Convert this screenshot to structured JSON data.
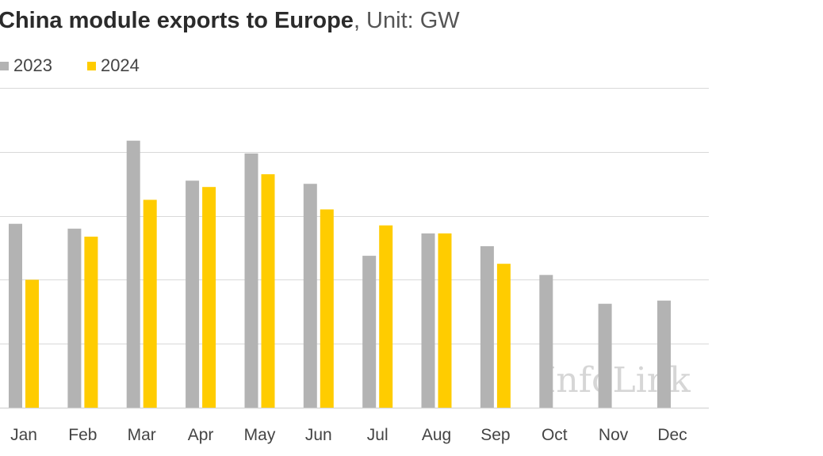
{
  "title_bold": "China module exports to Europe",
  "title_rest": ", Unit: GW",
  "colors": {
    "s2023": "#b3b3b3",
    "s2024": "#ffcc00",
    "grid": "#d9d9d9",
    "axis_text": "#444444",
    "watermark": "#d6d6d6"
  },
  "watermark": "InfoLink",
  "chart_data": {
    "type": "bar",
    "categories": [
      "Jan",
      "Feb",
      "Mar",
      "Apr",
      "May",
      "Jun",
      "Jul",
      "Aug",
      "Sep",
      "Oct",
      "Nov",
      "Dec"
    ],
    "series": [
      {
        "name": "2023",
        "values": [
          5.75,
          5.6,
          8.35,
          7.1,
          7.95,
          7.0,
          4.75,
          5.45,
          5.05,
          4.15,
          3.25,
          3.35
        ]
      },
      {
        "name": "2024",
        "values": [
          4.0,
          5.35,
          6.5,
          6.9,
          7.3,
          6.2,
          5.7,
          5.45,
          4.5,
          null,
          null,
          null
        ]
      }
    ],
    "ylim": [
      0,
      10
    ],
    "y_tick_step": 2,
    "grid": true,
    "legend_position": "top-left",
    "xlabel": "",
    "ylabel": ""
  }
}
